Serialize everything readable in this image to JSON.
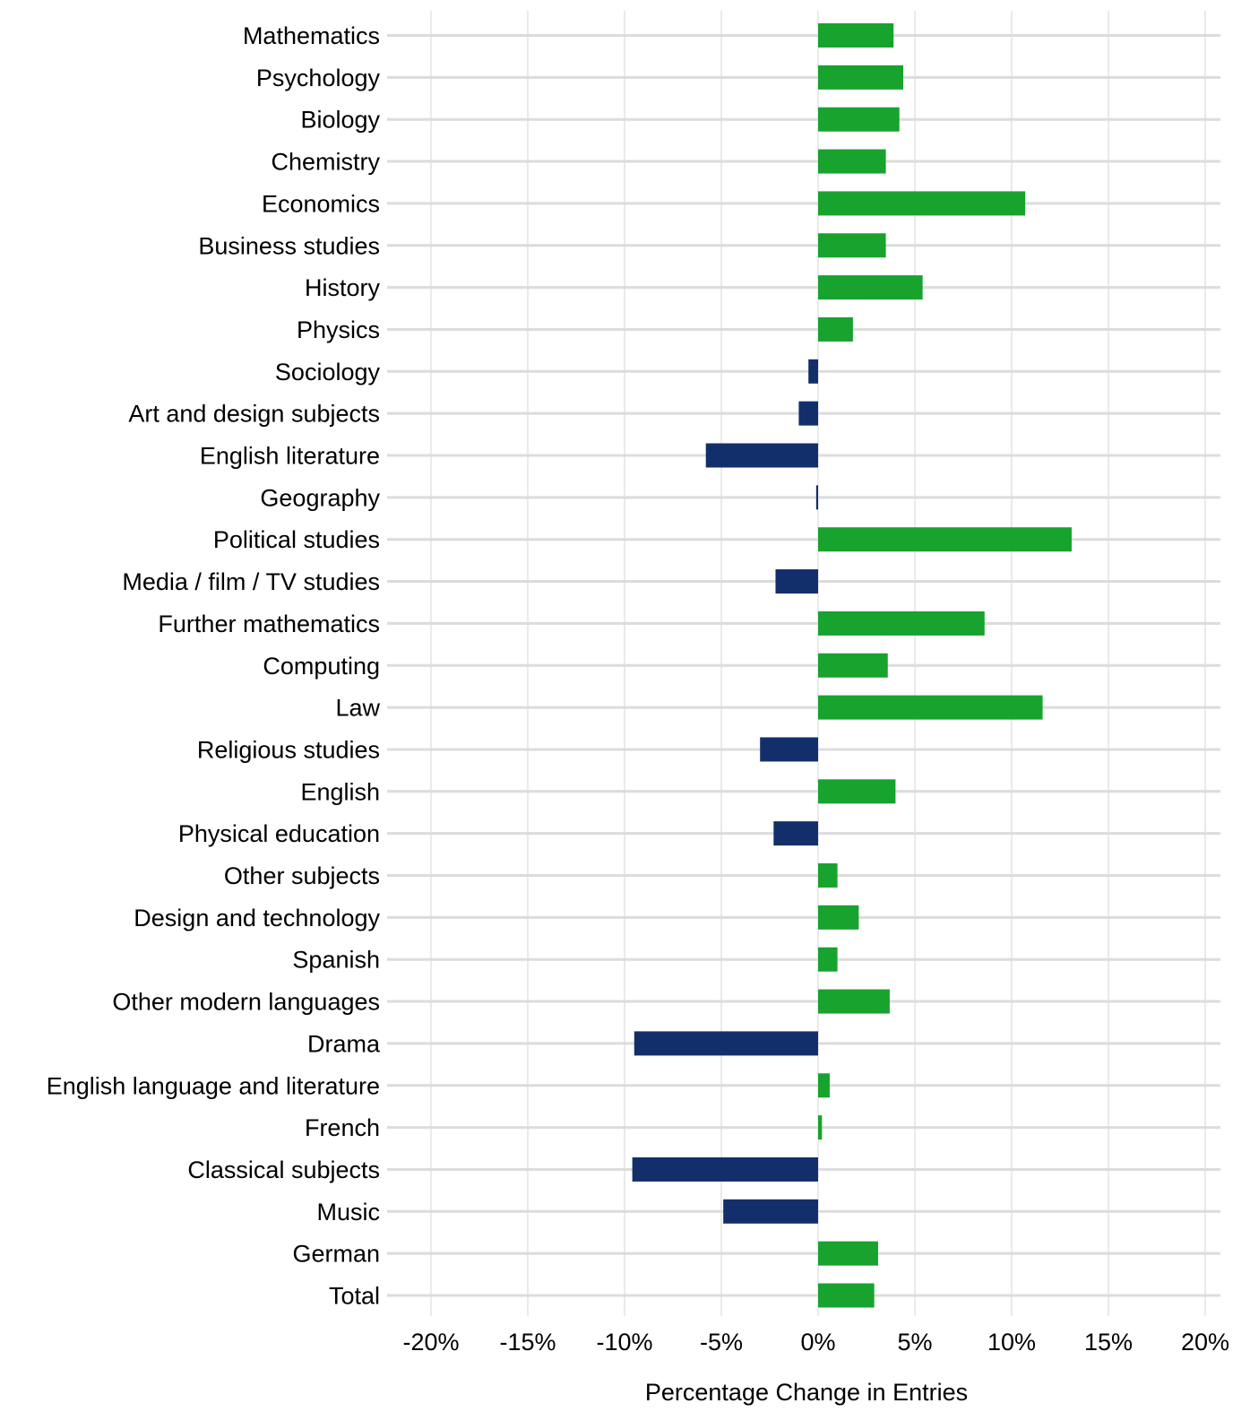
{
  "chart_data": {
    "type": "bar",
    "orientation": "horizontal",
    "title": "",
    "xlabel": "Percentage Change in Entries",
    "ylabel": "",
    "xlim": [
      -20,
      20
    ],
    "x_ticks": [
      -20,
      -15,
      -10,
      -5,
      0,
      5,
      10,
      15,
      20
    ],
    "x_tick_labels": [
      "-20%",
      "-15%",
      "-10%",
      "-5%",
      "0%",
      "5%",
      "10%",
      "15%",
      "20%"
    ],
    "grid": true,
    "legend": "none",
    "colors": {
      "positive": "#17a32e",
      "negative": "#132f6b",
      "grid": "#dcdcdc"
    },
    "categories": [
      "Mathematics",
      "Psychology",
      "Biology",
      "Chemistry",
      "Economics",
      "Business studies",
      "History",
      "Physics",
      "Sociology",
      "Art and design subjects",
      "English literature",
      "Geography",
      "Political studies",
      "Media / film / TV studies",
      "Further mathematics",
      "Computing",
      "Law",
      "Religious studies",
      "English",
      "Physical education",
      "Other subjects",
      "Design and technology",
      "Spanish",
      "Other modern languages",
      "Drama",
      "English language and literature",
      "French",
      "Classical subjects",
      "Music",
      "German",
      "Total"
    ],
    "values": [
      3.9,
      4.4,
      4.2,
      3.5,
      10.7,
      3.5,
      5.4,
      1.8,
      -0.5,
      -1.0,
      -5.8,
      -0.1,
      13.1,
      -2.2,
      8.6,
      3.6,
      11.6,
      -3.0,
      4.0,
      -2.3,
      1.0,
      2.1,
      1.0,
      3.7,
      -9.5,
      0.6,
      0.2,
      -9.6,
      -4.9,
      3.1,
      2.9
    ]
  }
}
